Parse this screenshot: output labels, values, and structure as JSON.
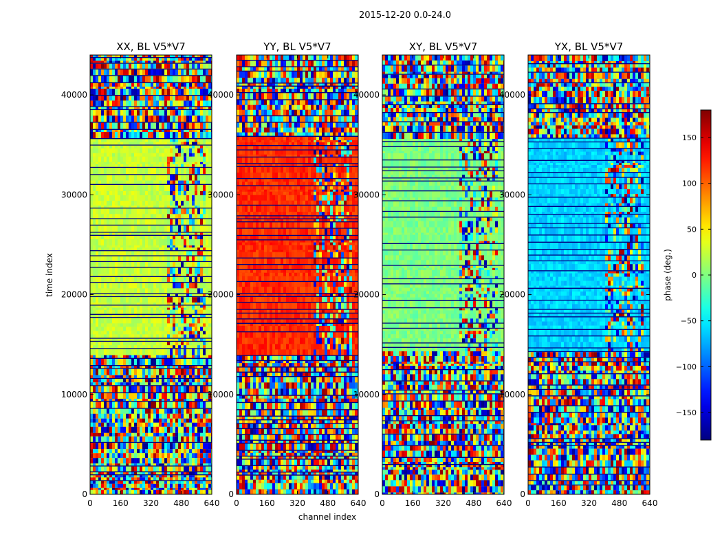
{
  "figure": {
    "suptitle": "2015-12-20 0.0-24.0"
  },
  "chart_data": {
    "type": "heatmap",
    "xlabel": "channel index",
    "ylabel": "time index",
    "xticks": [
      0,
      160,
      320,
      480,
      640
    ],
    "yticks": [
      0,
      10000,
      20000,
      30000,
      40000
    ],
    "xlim": [
      0,
      640
    ],
    "ylim": [
      0,
      44000
    ],
    "colorbar": {
      "label": "phase (deg.)",
      "ticks": [
        150,
        100,
        50,
        0,
        -50,
        -100,
        -150
      ],
      "range": [
        -180,
        180
      ],
      "colormap": "jet"
    },
    "panels": [
      {
        "title": "XX, BL V5*V7",
        "base_phase": 25
      },
      {
        "title": "YY, BL V5*V7",
        "base_phase": 120
      },
      {
        "title": "XY, BL V5*V7",
        "base_phase": 0
      },
      {
        "title": "YX, BL V5*V7",
        "base_phase": -60
      }
    ]
  }
}
